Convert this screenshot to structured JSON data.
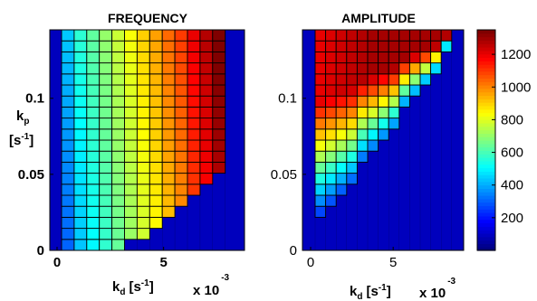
{
  "chart_data": [
    {
      "type": "heatmap",
      "title": "FREQUENCY",
      "xlabel": "k",
      "xlabel_sub": "d",
      "xlabel_unit": "[s",
      "xlabel_unit_exp": "-1",
      "xlabel_unit_end": "]",
      "ylabel": "k",
      "ylabel_sub": "p",
      "ylabel_unit": "[s",
      "ylabel_unit_exp": "-1",
      "ylabel_unit_end": "]",
      "x_multiplier": "x 10",
      "x_multiplier_exp": "-3",
      "x_ticks": [
        "0",
        "5"
      ],
      "y_ticks": [
        "0",
        "0.05",
        "0.1"
      ],
      "x_range": [
        0,
        8.5
      ],
      "y_range": [
        0,
        0.145
      ],
      "grid_cols": 13,
      "grid_rows": 20,
      "row_start": [
        0,
        0,
        0,
        0,
        0,
        1,
        1,
        2,
        3,
        4,
        5,
        6,
        7,
        8,
        9,
        10,
        11,
        12,
        12,
        12
      ],
      "col_low": [
        300,
        430,
        500,
        570,
        640,
        710,
        780,
        850,
        930,
        1000,
        1080,
        1160,
        1260
      ]
    },
    {
      "type": "heatmap",
      "title": "AMPLITUDE",
      "xlabel": "k",
      "xlabel_sub": "d",
      "xlabel_unit": "[s",
      "xlabel_unit_exp": "-1",
      "xlabel_unit_end": "]",
      "x_multiplier": "x 10",
      "x_multiplier_exp": "-3",
      "x_ticks": [
        "0",
        "5"
      ],
      "y_ticks": [
        "0",
        "0.05",
        "0.1"
      ],
      "x_range": [
        0,
        8.5
      ],
      "y_range": [
        0,
        0.145
      ],
      "grid_cols": 13,
      "grid_rows": 20,
      "colorbar_ticks": [
        "200",
        "400",
        "600",
        "800",
        "1000",
        "1200"
      ],
      "colorbar_range": [
        0,
        1350
      ]
    }
  ]
}
